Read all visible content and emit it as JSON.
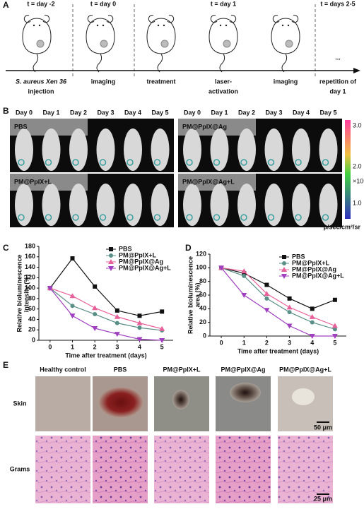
{
  "panel_labels": [
    "A",
    "B",
    "C",
    "D",
    "E"
  ],
  "panel_a": {
    "top_labels": [
      "t = day -2",
      "t = day 0",
      "t = day 1",
      "t = days 2-5"
    ],
    "steps": [
      [
        "S. aureus Xen 36",
        "injection"
      ],
      [
        "imaging"
      ],
      [
        "treatment"
      ],
      [
        "laser-",
        "activation"
      ],
      [
        "imaging"
      ],
      [
        "repetition of",
        "day 1"
      ]
    ],
    "ellipsis": "..."
  },
  "panel_b": {
    "days": [
      "Day 0",
      "Day 1",
      "Day 2",
      "Day 3",
      "Day 4",
      "Day 5"
    ],
    "groups": [
      "PBS",
      "PM@PpIX@Ag",
      "PM@PpIX+L",
      "PM@PpIX@Ag+L"
    ],
    "colorbar_ticks": [
      "3.0",
      "2.0",
      "1.0"
    ],
    "colorbar_scale": "×10⁶",
    "colorbar_unit": "p/sec/cm²/sr"
  },
  "chart_data": [
    {
      "type": "line",
      "ylabel": [
        "Relative bioluminescence",
        "intensity (%)"
      ],
      "xlabel": "Time after treatment (days)",
      "x": [
        0,
        1,
        2,
        3,
        4,
        5
      ],
      "xlim": [
        -0.5,
        5.5
      ],
      "xticks": [
        0,
        1,
        2,
        3,
        4,
        5
      ],
      "ylim": [
        0,
        180
      ],
      "yticks": [
        0,
        20,
        40,
        60,
        80,
        100,
        120,
        140,
        160,
        180
      ],
      "legend": "upper right",
      "series": [
        {
          "name": "PBS",
          "color": "#111111",
          "marker": "square",
          "values": [
            100,
            157,
            103,
            57,
            47,
            55
          ]
        },
        {
          "name": "PM@PpIX+L",
          "color": "#5a8f87",
          "marker": "circle",
          "values": [
            100,
            66,
            50,
            33,
            24,
            19
          ]
        },
        {
          "name": "PM@PpIX@Ag",
          "color": "#e8609a",
          "marker": "triangle",
          "values": [
            100,
            85,
            62,
            45,
            33,
            22
          ]
        },
        {
          "name": "PM@PpIX@Ag+L",
          "color": "#a040c0",
          "marker": "triangle-down",
          "values": [
            100,
            47,
            23,
            12,
            2,
            0
          ]
        }
      ]
    },
    {
      "type": "line",
      "ylabel": [
        "Relative bioluminescence",
        "area (%)"
      ],
      "xlabel": "Time after treatment (days)",
      "x": [
        0,
        1,
        2,
        3,
        4,
        5
      ],
      "xlim": [
        -0.5,
        5.5
      ],
      "xticks": [
        0,
        1,
        2,
        3,
        4,
        5
      ],
      "ylim": [
        0,
        120
      ],
      "yticks": [
        0,
        20,
        40,
        60,
        80,
        100,
        120
      ],
      "legend": "upper right",
      "series": [
        {
          "name": "PBS",
          "color": "#111111",
          "marker": "square",
          "values": [
            100,
            92,
            75,
            55,
            40,
            53
          ]
        },
        {
          "name": "PM@PpIX+L",
          "color": "#5a8f87",
          "marker": "circle",
          "values": [
            100,
            88,
            55,
            35,
            20,
            10
          ]
        },
        {
          "name": "PM@PpIX@Ag",
          "color": "#e8609a",
          "marker": "triangle",
          "values": [
            100,
            95,
            62,
            42,
            28,
            15
          ]
        },
        {
          "name": "PM@PpIX@Ag+L",
          "color": "#a040c0",
          "marker": "triangle-down",
          "values": [
            100,
            60,
            38,
            15,
            0,
            0
          ]
        }
      ]
    }
  ],
  "panel_e": {
    "columns": [
      "Healthy control",
      "PBS",
      "PM@PpIX+L",
      "PM@PpIX@Ag",
      "PM@PpIX@Ag+L"
    ],
    "rows": [
      "Skin",
      "Grams"
    ],
    "scale_bars": [
      "50 μm",
      "25 μm"
    ]
  }
}
